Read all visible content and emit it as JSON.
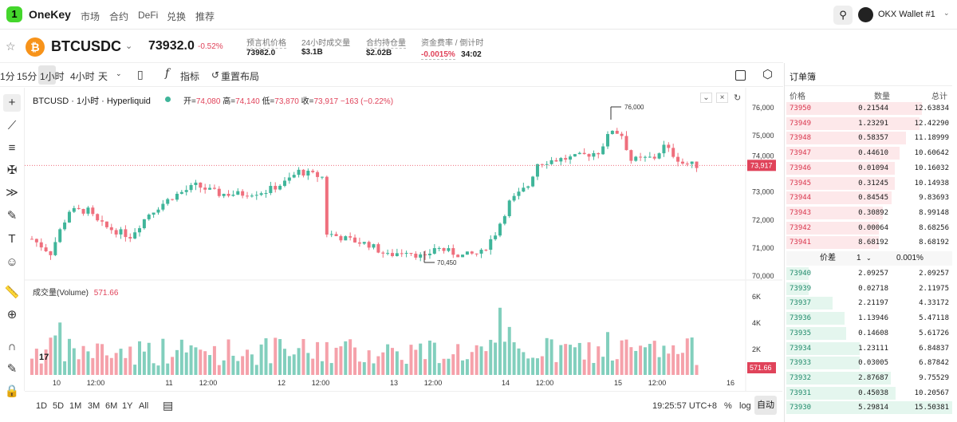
{
  "header": {
    "brand": "OneKey",
    "nav": [
      "市场",
      "合约",
      "DeFi",
      "兑换",
      "推荐"
    ],
    "wallet": "OKX Wallet #1"
  },
  "ticker": {
    "symbol": "BTCUSDC",
    "price": "73932.0",
    "change": "-0.52%",
    "stats": [
      {
        "label": "预言机价格",
        "value": "73982.0"
      },
      {
        "label": "24小时成交量",
        "value": "$3.1B"
      },
      {
        "label": "合约持仓量",
        "value": "$2.02B"
      },
      {
        "label": "资金费率 / 倒计时",
        "value": "-0.0015%",
        "extra": "34:02"
      }
    ]
  },
  "toolbar": {
    "intervals": [
      "1分",
      "15分",
      "1小时",
      "4小时",
      "天"
    ],
    "active": "1小时",
    "indicators": "指标",
    "reset": "重置布局"
  },
  "chart": {
    "title": "BTCUSD · 1小时 · Hyperliquid",
    "ohlc": {
      "o_label": "开=",
      "o": "74,080",
      "h_label": "高=",
      "h": "74,140",
      "l_label": "低=",
      "l": "73,870",
      "c_label": "收=",
      "c": "73,917",
      "chg": "−163 (−0.22%)"
    },
    "price_ticks": [
      "76,000",
      "75,000",
      "74,000",
      "73,000",
      "72,000",
      "71,000",
      "70,000"
    ],
    "last_price": "73,917",
    "high_mark": "76,000",
    "low_mark": "70,450",
    "volume_label": "成交量(Volume)",
    "volume_value": "571.66",
    "volume_ticks": [
      "6K",
      "4K",
      "2K"
    ],
    "volume_last": "571.66",
    "date_ticks": [
      "10",
      "12:00",
      "11",
      "12:00",
      "12",
      "12:00",
      "13",
      "12:00",
      "14",
      "12:00",
      "15",
      "12:00",
      "16"
    ],
    "price_path": [
      [
        0,
        71300
      ],
      [
        4,
        70800
      ],
      [
        6,
        71600
      ],
      [
        8,
        72300
      ],
      [
        12,
        72300
      ],
      [
        14,
        71900
      ],
      [
        16,
        71700
      ],
      [
        21,
        71400
      ],
      [
        25,
        72200
      ],
      [
        30,
        72800
      ],
      [
        35,
        73200
      ],
      [
        40,
        72900
      ],
      [
        45,
        72900
      ],
      [
        50,
        73000
      ],
      [
        54,
        73300
      ],
      [
        57,
        73700
      ],
      [
        62,
        73500
      ],
      [
        63,
        71500
      ],
      [
        67,
        71300
      ],
      [
        72,
        71100
      ],
      [
        76,
        70700
      ],
      [
        80,
        70900
      ],
      [
        84,
        70600
      ],
      [
        86,
        71000
      ],
      [
        92,
        70700
      ],
      [
        96,
        70800
      ],
      [
        99,
        71500
      ],
      [
        102,
        72600
      ],
      [
        106,
        73200
      ],
      [
        108,
        74000
      ],
      [
        111,
        74100
      ],
      [
        116,
        74200
      ],
      [
        121,
        74400
      ],
      [
        124,
        75200
      ],
      [
        126,
        75000
      ],
      [
        128,
        74100
      ],
      [
        133,
        74200
      ],
      [
        135,
        74600
      ],
      [
        139,
        74000
      ],
      [
        142,
        73917
      ]
    ],
    "colors": {
      "up": "#3fb59a",
      "down": "#ef6f7d"
    }
  },
  "bottom": {
    "ranges": [
      "1D",
      "5D",
      "1M",
      "3M",
      "6M",
      "1Y",
      "All"
    ],
    "time": "19:25:57 UTC+8",
    "pct": "%",
    "log": "log",
    "auto": "自动"
  },
  "orderbook": {
    "title": "订单簿",
    "headers": [
      "价格",
      "数量",
      "总计"
    ],
    "asks": [
      [
        "73950",
        "0.21544",
        "12.63834"
      ],
      [
        "73949",
        "1.23291",
        "12.42290"
      ],
      [
        "73948",
        "0.58357",
        "11.18999"
      ],
      [
        "73947",
        "0.44610",
        "10.60642"
      ],
      [
        "73946",
        "0.01094",
        "10.16032"
      ],
      [
        "73945",
        "0.31245",
        "10.14938"
      ],
      [
        "73944",
        "0.84545",
        "9.83693"
      ],
      [
        "73943",
        "0.30892",
        "8.99148"
      ],
      [
        "73942",
        "0.00064",
        "8.68256"
      ],
      [
        "73941",
        "8.68192",
        "8.68192"
      ]
    ],
    "spread": {
      "label": "价差",
      "step": "1",
      "pct": "0.001%"
    },
    "bids": [
      [
        "73940",
        "2.09257",
        "2.09257"
      ],
      [
        "73939",
        "0.02718",
        "2.11975"
      ],
      [
        "73937",
        "2.21197",
        "4.33172"
      ],
      [
        "73936",
        "1.13946",
        "5.47118"
      ],
      [
        "73935",
        "0.14608",
        "5.61726"
      ],
      [
        "73934",
        "1.23111",
        "6.84837"
      ],
      [
        "73933",
        "0.03005",
        "6.87842"
      ],
      [
        "73932",
        "2.87687",
        "9.75529"
      ],
      [
        "73931",
        "0.45038",
        "10.20567"
      ],
      [
        "73930",
        "5.29814",
        "15.50381"
      ]
    ]
  }
}
